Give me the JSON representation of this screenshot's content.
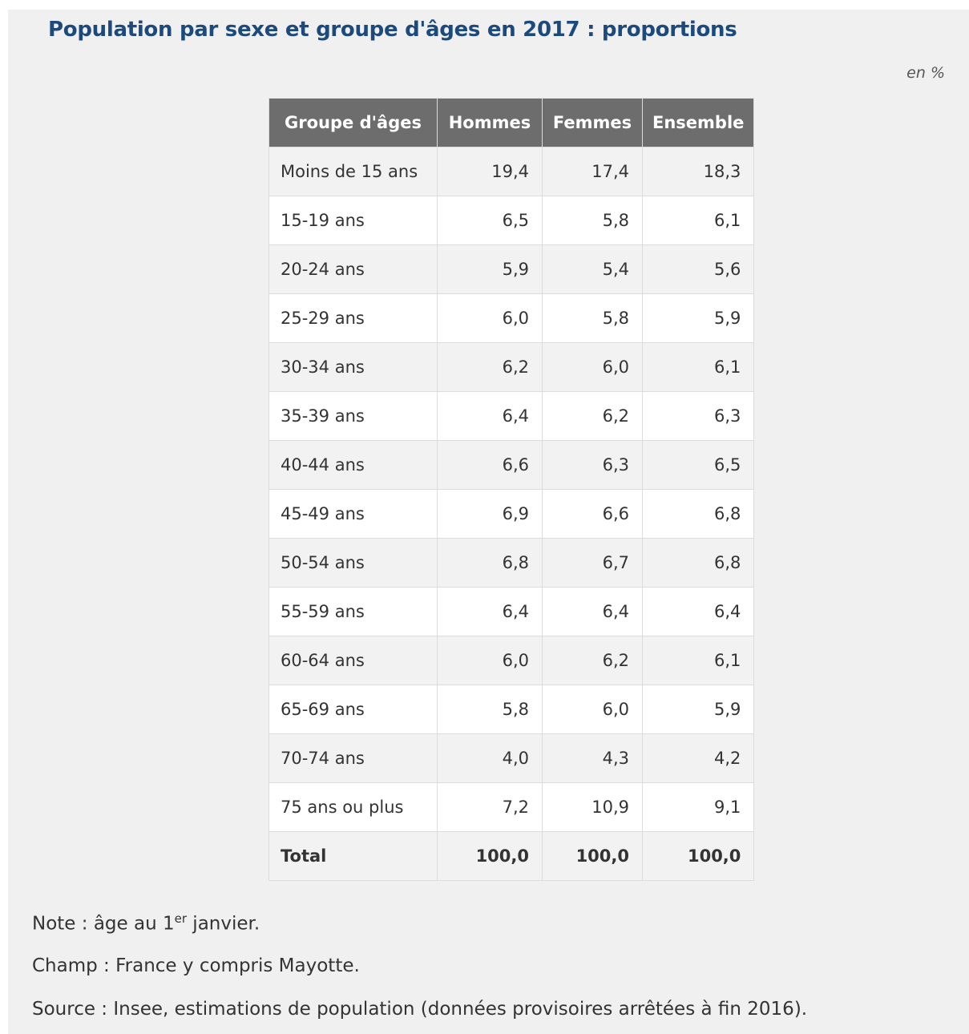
{
  "title": "Population par sexe et groupe d'âges en 2017 : proportions",
  "unit": "en %",
  "table": {
    "header": [
      "Groupe d'âges",
      "Hommes",
      "Femmes",
      "Ensemble"
    ],
    "rows": [
      [
        "Moins de 15 ans",
        "19,4",
        "17,4",
        "18,3"
      ],
      [
        "15-19 ans",
        "6,5",
        "5,8",
        "6,1"
      ],
      [
        "20-24 ans",
        "5,9",
        "5,4",
        "5,6"
      ],
      [
        "25-29 ans",
        "6,0",
        "5,8",
        "5,9"
      ],
      [
        "30-34 ans",
        "6,2",
        "6,0",
        "6,1"
      ],
      [
        "35-39 ans",
        "6,4",
        "6,2",
        "6,3"
      ],
      [
        "40-44 ans",
        "6,6",
        "6,3",
        "6,5"
      ],
      [
        "45-49 ans",
        "6,9",
        "6,6",
        "6,8"
      ],
      [
        "50-54 ans",
        "6,8",
        "6,7",
        "6,8"
      ],
      [
        "55-59 ans",
        "6,4",
        "6,4",
        "6,4"
      ],
      [
        "60-64 ans",
        "6,0",
        "6,2",
        "6,1"
      ],
      [
        "65-69 ans",
        "5,8",
        "6,0",
        "5,9"
      ],
      [
        "70-74 ans",
        "4,0",
        "4,3",
        "4,2"
      ],
      [
        "75 ans ou plus",
        "7,2",
        "10,9",
        "9,1"
      ]
    ],
    "total": [
      "Total",
      "100,0",
      "100,0",
      "100,0"
    ]
  },
  "note": {
    "text": "Note : âge au 1",
    "sup": "er",
    "after": " janvier."
  },
  "champ": "Champ : France y compris Mayotte.",
  "source": "Source : Insee, estimations de population (données provisoires arrêtées à fin 2016)."
}
